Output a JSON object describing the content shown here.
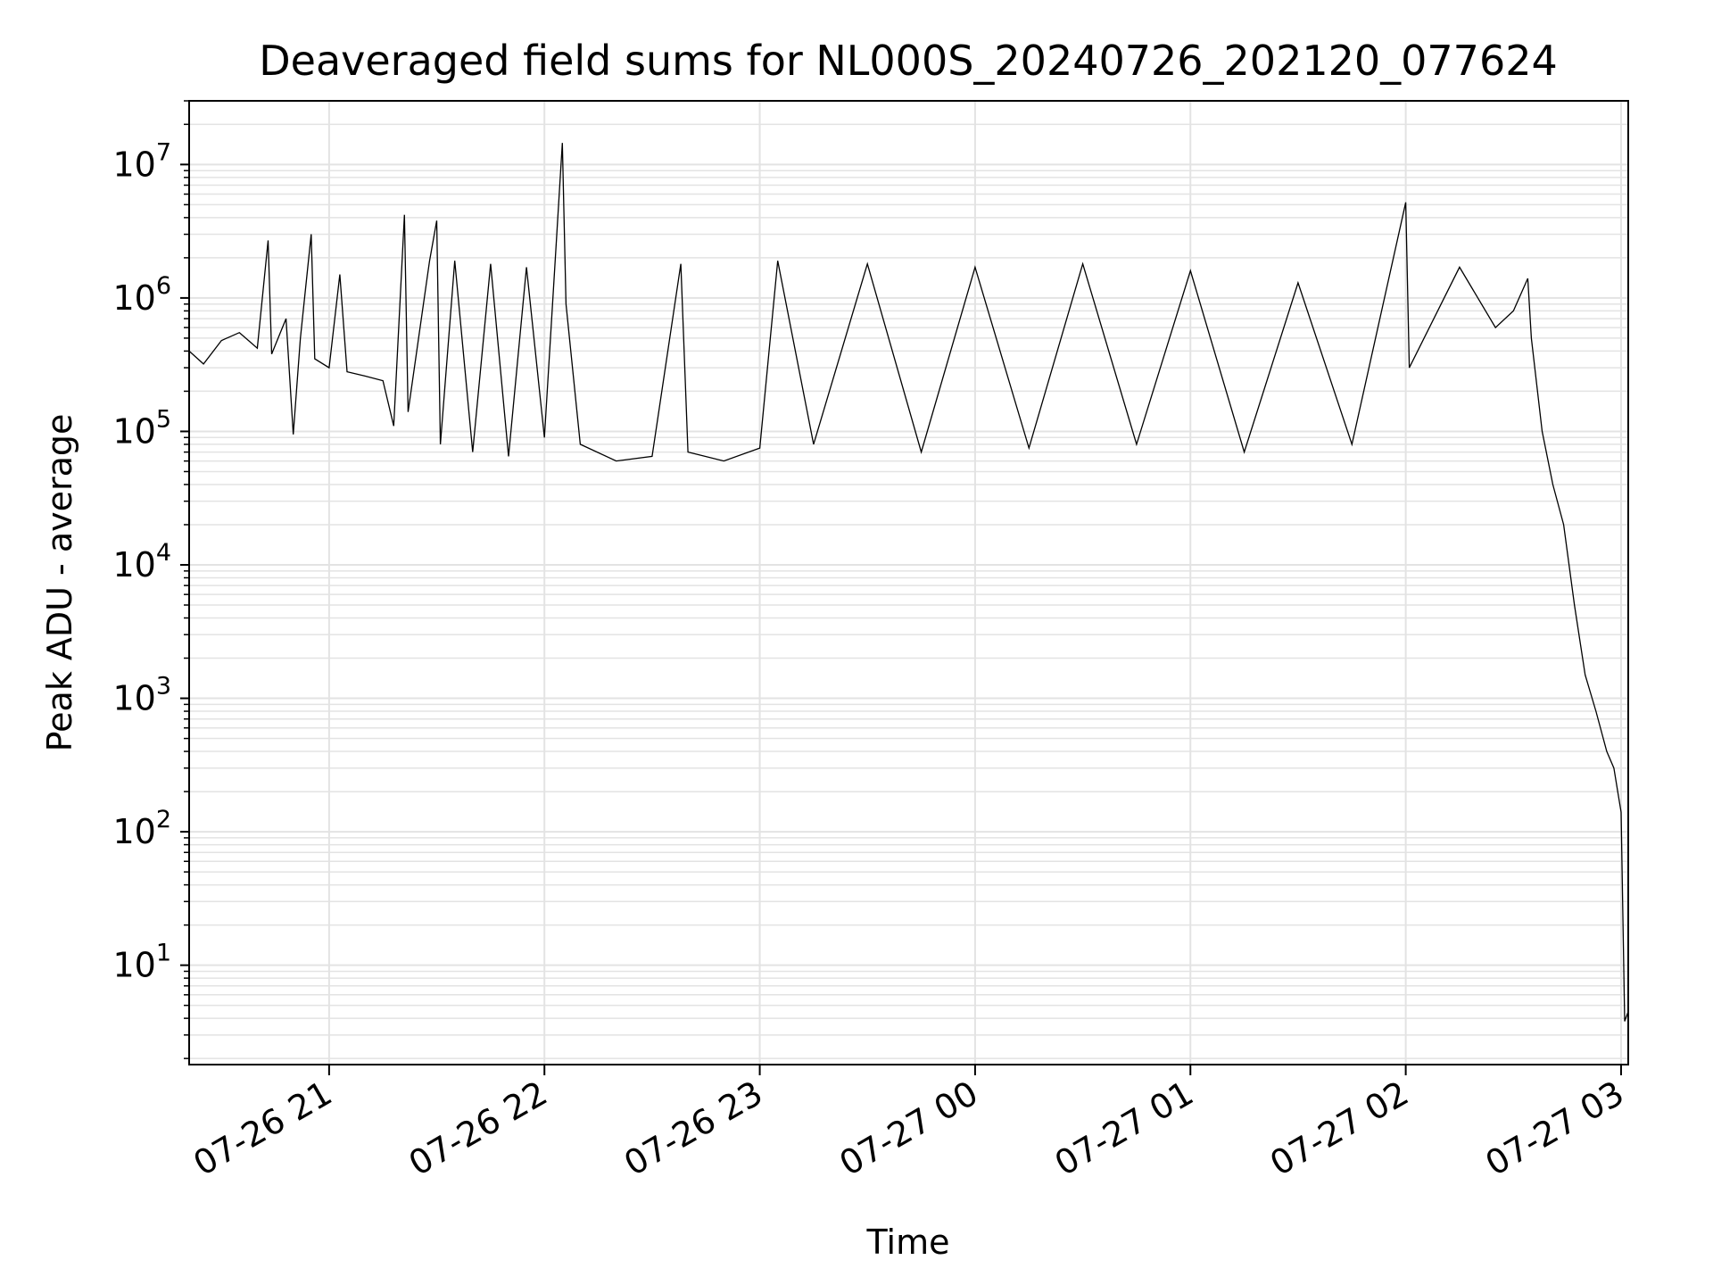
{
  "chart_data": {
    "type": "line",
    "title": "Deaveraged field sums for NL000S_20240726_202120_077624",
    "xlabel": "Time",
    "ylabel": "Peak ADU - average",
    "yscale": "log",
    "ylim": [
      1.8,
      30000000
    ],
    "xlim": [
      "2024-07-26 20:21",
      "2024-07-27 03:02"
    ],
    "grid": "major and minor",
    "x_ticks": [
      {
        "t": "2024-07-26 21:00",
        "label": "07-26 21"
      },
      {
        "t": "2024-07-26 22:00",
        "label": "07-26 22"
      },
      {
        "t": "2024-07-26 23:00",
        "label": "07-26 23"
      },
      {
        "t": "2024-07-27 00:00",
        "label": "07-27 00"
      },
      {
        "t": "2024-07-27 01:00",
        "label": "07-27 01"
      },
      {
        "t": "2024-07-27 02:00",
        "label": "07-27 02"
      },
      {
        "t": "2024-07-27 03:00",
        "label": "07-27 03"
      }
    ],
    "y_ticks": [
      {
        "v": 10,
        "base": "10",
        "exp": "1"
      },
      {
        "v": 100,
        "base": "10",
        "exp": "2"
      },
      {
        "v": 1000,
        "base": "10",
        "exp": "3"
      },
      {
        "v": 10000,
        "base": "10",
        "exp": "4"
      },
      {
        "v": 100000,
        "base": "10",
        "exp": "5"
      },
      {
        "v": 1000000,
        "base": "10",
        "exp": "6"
      },
      {
        "v": 10000000,
        "base": "10",
        "exp": "7"
      }
    ],
    "series_color": "#000000",
    "points": [
      [
        "2024-07-26 20:21",
        400000
      ],
      [
        "2024-07-26 20:25",
        320000
      ],
      [
        "2024-07-26 20:30",
        480000
      ],
      [
        "2024-07-26 20:35",
        550000
      ],
      [
        "2024-07-26 20:40",
        420000
      ],
      [
        "2024-07-26 20:43",
        2700000
      ],
      [
        "2024-07-26 20:44",
        380000
      ],
      [
        "2024-07-26 20:48",
        700000
      ],
      [
        "2024-07-26 20:50",
        95000
      ],
      [
        "2024-07-26 20:52",
        500000
      ],
      [
        "2024-07-26 20:55",
        3000000
      ],
      [
        "2024-07-26 20:56",
        350000
      ],
      [
        "2024-07-26 21:00",
        300000
      ],
      [
        "2024-07-26 21:03",
        1500000
      ],
      [
        "2024-07-26 21:05",
        280000
      ],
      [
        "2024-07-26 21:10",
        260000
      ],
      [
        "2024-07-26 21:15",
        240000
      ],
      [
        "2024-07-26 21:18",
        110000
      ],
      [
        "2024-07-26 21:21",
        4200000
      ],
      [
        "2024-07-26 21:22",
        140000
      ],
      [
        "2024-07-26 21:28",
        1900000
      ],
      [
        "2024-07-26 21:30",
        3800000
      ],
      [
        "2024-07-26 21:31",
        80000
      ],
      [
        "2024-07-26 21:35",
        1900000
      ],
      [
        "2024-07-26 21:40",
        70000
      ],
      [
        "2024-07-26 21:45",
        1800000
      ],
      [
        "2024-07-26 21:50",
        65000
      ],
      [
        "2024-07-26 21:55",
        1700000
      ],
      [
        "2024-07-26 22:00",
        90000
      ],
      [
        "2024-07-26 22:05",
        14500000
      ],
      [
        "2024-07-26 22:06",
        900000
      ],
      [
        "2024-07-26 22:10",
        80000
      ],
      [
        "2024-07-26 22:20",
        60000
      ],
      [
        "2024-07-26 22:30",
        65000
      ],
      [
        "2024-07-26 22:40",
        70000
      ],
      [
        "2024-07-26 22:38",
        1800000
      ],
      [
        "2024-07-26 22:50",
        60000
      ],
      [
        "2024-07-26 23:00",
        75000
      ],
      [
        "2024-07-26 23:05",
        1900000
      ],
      [
        "2024-07-26 23:15",
        80000
      ],
      [
        "2024-07-26 23:30",
        1800000
      ],
      [
        "2024-07-26 23:45",
        70000
      ],
      [
        "2024-07-27 00:00",
        1700000
      ],
      [
        "2024-07-27 00:15",
        75000
      ],
      [
        "2024-07-27 00:30",
        1800000
      ],
      [
        "2024-07-27 00:45",
        80000
      ],
      [
        "2024-07-27 01:00",
        1600000
      ],
      [
        "2024-07-27 01:15",
        70000
      ],
      [
        "2024-07-27 01:30",
        1300000
      ],
      [
        "2024-07-27 01:45",
        80000
      ],
      [
        "2024-07-27 02:00",
        5200000
      ],
      [
        "2024-07-27 02:01",
        300000
      ],
      [
        "2024-07-27 02:15",
        1700000
      ],
      [
        "2024-07-27 02:25",
        600000
      ],
      [
        "2024-07-27 02:30",
        800000
      ],
      [
        "2024-07-27 02:34",
        1400000
      ],
      [
        "2024-07-27 02:35",
        500000
      ],
      [
        "2024-07-27 02:38",
        100000
      ],
      [
        "2024-07-27 02:41",
        40000
      ],
      [
        "2024-07-27 02:44",
        20000
      ],
      [
        "2024-07-27 02:47",
        5000
      ],
      [
        "2024-07-27 02:50",
        1500
      ],
      [
        "2024-07-27 02:53",
        800
      ],
      [
        "2024-07-27 02:56",
        400
      ],
      [
        "2024-07-27 02:58",
        300
      ],
      [
        "2024-07-27 03:00",
        140
      ],
      [
        "2024-07-27 03:01",
        3.8
      ],
      [
        "2024-07-27 03:02",
        4.5
      ]
    ]
  }
}
